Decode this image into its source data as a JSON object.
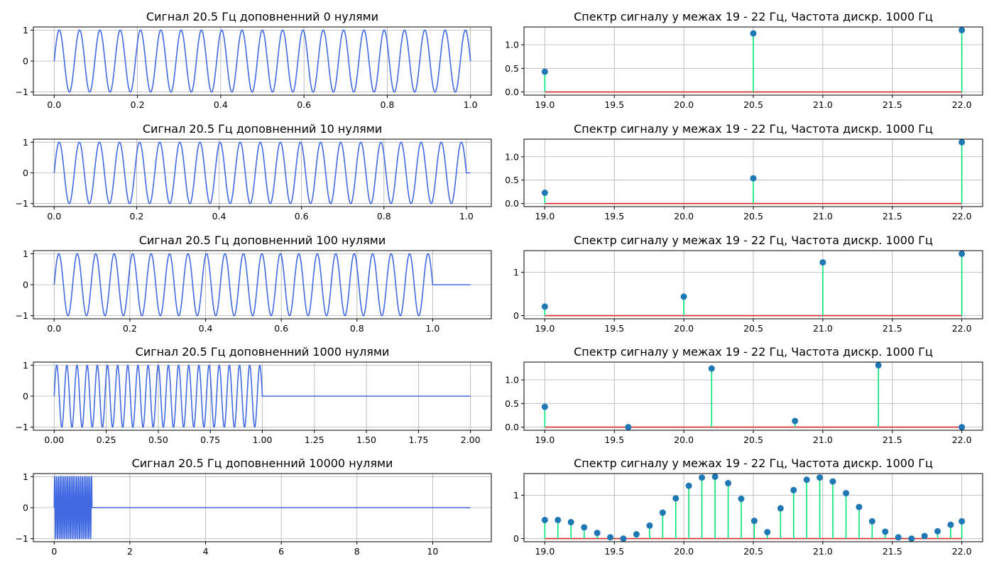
{
  "chart_data": [
    {
      "type": "line",
      "title": "Сигнал 20.5 Гц доповненний 0 нулями",
      "signal": {
        "frequency": 20.5,
        "duration": 1.0
      },
      "xlim": [
        -0.05,
        1.05
      ],
      "ylim": [
        -1.1,
        1.1
      ],
      "xticks": [
        0,
        0.2,
        0.4,
        0.6,
        0.8,
        1.0
      ],
      "xtick_labels": [
        "0.0",
        "0.2",
        "0.4",
        "0.6",
        "0.8",
        "1.0"
      ],
      "yticks": [
        -1,
        0,
        1
      ],
      "ytick_labels": [
        "−1",
        "0",
        "1"
      ],
      "x_end": 1.0,
      "line_color": "#4169e1",
      "grid": true
    },
    {
      "type": "line",
      "title": "Сигнал 20.5 Гц доповненний 10 нулями",
      "signal": {
        "frequency": 20.5,
        "duration": 1.0
      },
      "xlim": [
        -0.0505,
        1.0605
      ],
      "ylim": [
        -1.1,
        1.1
      ],
      "xticks": [
        0,
        0.2,
        0.4,
        0.6,
        0.8,
        1.0
      ],
      "xtick_labels": [
        "0.0",
        "0.2",
        "0.4",
        "0.6",
        "0.8",
        "1.0"
      ],
      "yticks": [
        -1,
        0,
        1
      ],
      "ytick_labels": [
        "−1",
        "0",
        "1"
      ],
      "x_end": 1.01,
      "line_color": "#4169e1",
      "grid": true
    },
    {
      "type": "line",
      "title": "Сигнал 20.5 Гц доповненний 100 нулями",
      "signal": {
        "frequency": 20.5,
        "duration": 1.0
      },
      "xlim": [
        -0.055,
        1.155
      ],
      "ylim": [
        -1.1,
        1.1
      ],
      "xticks": [
        0,
        0.2,
        0.4,
        0.6,
        0.8,
        1.0
      ],
      "xtick_labels": [
        "0.0",
        "0.2",
        "0.4",
        "0.6",
        "0.8",
        "1.0"
      ],
      "yticks": [
        -1,
        0,
        1
      ],
      "ytick_labels": [
        "−1",
        "0",
        "1"
      ],
      "x_end": 1.1,
      "line_color": "#4169e1",
      "grid": true
    },
    {
      "type": "line",
      "title": "Сигнал 20.5 Гц доповненний 1000 нулями",
      "signal": {
        "frequency": 20.5,
        "duration": 1.0
      },
      "xlim": [
        -0.1,
        2.1
      ],
      "ylim": [
        -1.1,
        1.1
      ],
      "xticks": [
        0,
        0.25,
        0.5,
        0.75,
        1.0,
        1.25,
        1.5,
        1.75,
        2.0
      ],
      "xtick_labels": [
        "0.00",
        "0.25",
        "0.50",
        "0.75",
        "1.00",
        "1.25",
        "1.50",
        "1.75",
        "2.00"
      ],
      "yticks": [
        -1,
        0,
        1
      ],
      "ytick_labels": [
        "−1",
        "0",
        "1"
      ],
      "x_end": 2.0,
      "line_color": "#4169e1",
      "grid": true
    },
    {
      "type": "line",
      "title": "Сигнал 20.5 Гц доповненний 10000 нулями",
      "signal": {
        "frequency": 20.5,
        "duration": 1.0
      },
      "xlim": [
        -0.55,
        11.55
      ],
      "ylim": [
        -1.1,
        1.1
      ],
      "xticks": [
        0,
        2,
        4,
        6,
        8,
        10
      ],
      "xtick_labels": [
        "0",
        "2",
        "4",
        "6",
        "8",
        "10"
      ],
      "yticks": [
        -1,
        0,
        1
      ],
      "ytick_labels": [
        "−1",
        "0",
        "1"
      ],
      "x_end": 11.0,
      "line_color": "#4169e1",
      "grid": true
    },
    {
      "type": "stem",
      "title": "Спектр сигналу у межах 19 - 22 Гц, Частота дискр. 1000 Гц",
      "x": [
        19.0,
        20.5,
        22.0
      ],
      "values": [
        0.43,
        1.24,
        1.31
      ],
      "xlim": [
        18.85,
        22.15
      ],
      "ylim": [
        -0.066,
        1.376
      ],
      "xticks": [
        19.0,
        19.5,
        20.0,
        20.5,
        21.0,
        21.5,
        22.0
      ],
      "xtick_labels": [
        "19.0",
        "19.5",
        "20.0",
        "20.5",
        "21.0",
        "21.5",
        "22.0"
      ],
      "yticks": [
        0,
        0.5,
        1.0
      ],
      "ytick_labels": [
        "0.0",
        "0.5",
        "1.0"
      ],
      "stem_color": "#00e676",
      "marker_color": "#1f77b4",
      "baseline_color": "#d62728",
      "grid": true
    },
    {
      "type": "stem",
      "title": "Спектр сигналу у межах 19 - 22 Гц, Частота дискр. 1000 Гц",
      "x": [
        19.0,
        20.5,
        22.0
      ],
      "values": [
        0.23,
        0.54,
        1.31
      ],
      "xlim": [
        18.85,
        22.15
      ],
      "ylim": [
        -0.066,
        1.376
      ],
      "xticks": [
        19.0,
        19.5,
        20.0,
        20.5,
        21.0,
        21.5,
        22.0
      ],
      "xtick_labels": [
        "19.0",
        "19.5",
        "20.0",
        "20.5",
        "21.0",
        "21.5",
        "22.0"
      ],
      "yticks": [
        0,
        0.5,
        1.0
      ],
      "ytick_labels": [
        "0.0",
        "0.5",
        "1.0"
      ],
      "stem_color": "#00e676",
      "marker_color": "#1f77b4",
      "baseline_color": "#d62728",
      "grid": true
    },
    {
      "type": "stem",
      "title": "Спектр сигналу у межах 19 - 22 Гц, Частота дискр. 1000 Гц",
      "x": [
        19.0,
        20.0,
        21.0,
        22.0
      ],
      "values": [
        0.21,
        0.44,
        1.23,
        1.43
      ],
      "xlim": [
        18.85,
        22.15
      ],
      "ylim": [
        -0.072,
        1.502
      ],
      "xticks": [
        19.0,
        19.5,
        20.0,
        20.5,
        21.0,
        21.5,
        22.0
      ],
      "xtick_labels": [
        "19.0",
        "19.5",
        "20.0",
        "20.5",
        "21.0",
        "21.5",
        "22.0"
      ],
      "yticks": [
        0,
        1
      ],
      "ytick_labels": [
        "0",
        "1"
      ],
      "stem_color": "#00e676",
      "marker_color": "#1f77b4",
      "baseline_color": "#d62728",
      "grid": true
    },
    {
      "type": "stem",
      "title": "Спектр сигналу у межах 19 - 22 Гц, Частота дискр. 1000 Гц",
      "x": [
        19.0,
        19.6,
        20.2,
        20.8,
        21.4,
        22.0
      ],
      "values": [
        0.43,
        0.0,
        1.24,
        0.13,
        1.31,
        0.0
      ],
      "xlim": [
        18.85,
        22.15
      ],
      "ylim": [
        -0.066,
        1.376
      ],
      "xticks": [
        19.0,
        19.5,
        20.0,
        20.5,
        21.0,
        21.5,
        22.0
      ],
      "xtick_labels": [
        "19.0",
        "19.5",
        "20.0",
        "20.5",
        "21.0",
        "21.5",
        "22.0"
      ],
      "yticks": [
        0,
        0.5,
        1.0
      ],
      "ytick_labels": [
        "0.0",
        "0.5",
        "1.0"
      ],
      "stem_color": "#00e676",
      "marker_color": "#1f77b4",
      "baseline_color": "#d62728",
      "grid": true
    },
    {
      "type": "stem",
      "title": "Спектр сигналу у межах 19 - 22 Гц, Частота дискр. 1000 Гц",
      "x": [
        19.0,
        19.094,
        19.188,
        19.283,
        19.377,
        19.471,
        19.565,
        19.659,
        19.754,
        19.848,
        19.942,
        20.036,
        20.13,
        20.225,
        20.319,
        20.413,
        20.507,
        20.601,
        20.696,
        20.79,
        20.884,
        20.978,
        21.072,
        21.167,
        21.261,
        21.355,
        21.449,
        21.543,
        21.638,
        21.732,
        21.826,
        21.92,
        22.0
      ],
      "values": [
        0.43,
        0.43,
        0.38,
        0.26,
        0.13,
        0.03,
        0.0,
        0.1,
        0.3,
        0.6,
        0.93,
        1.22,
        1.41,
        1.43,
        1.28,
        0.92,
        0.41,
        0.15,
        0.7,
        1.12,
        1.36,
        1.41,
        1.32,
        1.05,
        0.73,
        0.4,
        0.16,
        0.03,
        0.0,
        0.06,
        0.17,
        0.32,
        0.4
      ],
      "xlim": [
        18.85,
        22.15
      ],
      "ylim": [
        -0.072,
        1.502
      ],
      "xticks": [
        19.0,
        19.5,
        20.0,
        20.5,
        21.0,
        21.5,
        22.0
      ],
      "xtick_labels": [
        "19.0",
        "19.5",
        "20.0",
        "20.5",
        "21.0",
        "21.5",
        "22.0"
      ],
      "yticks": [
        0,
        1
      ],
      "ytick_labels": [
        "0",
        "1"
      ],
      "stem_color": "#00e676",
      "marker_color": "#1f77b4",
      "baseline_color": "#d62728",
      "grid": true
    }
  ]
}
